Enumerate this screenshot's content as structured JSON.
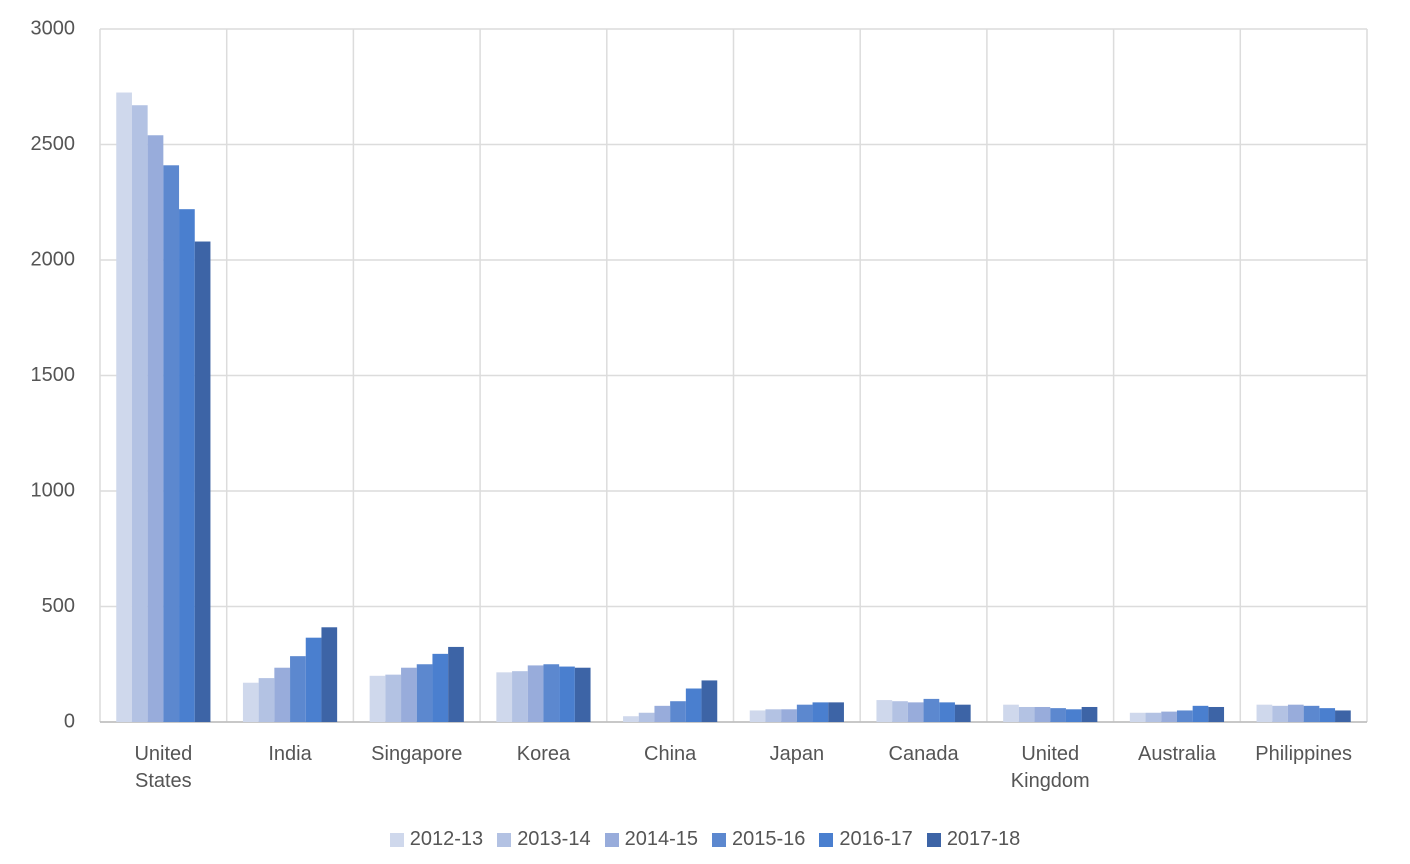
{
  "chart_data": {
    "type": "bar",
    "categories": [
      "United States",
      "India",
      "Singapore",
      "Korea",
      "China",
      "Japan",
      "Canada",
      "United Kingdom",
      "Australia",
      "Philippines"
    ],
    "series": [
      {
        "name": "2012-13",
        "color": "#cfd8ec",
        "values": [
          2725,
          170,
          200,
          215,
          25,
          50,
          95,
          75,
          40,
          75
        ]
      },
      {
        "name": "2013-14",
        "color": "#b3c2e3",
        "values": [
          2670,
          190,
          205,
          220,
          40,
          55,
          90,
          65,
          40,
          70
        ]
      },
      {
        "name": "2014-15",
        "color": "#98acdb",
        "values": [
          2540,
          235,
          235,
          245,
          70,
          55,
          85,
          65,
          45,
          75
        ]
      },
      {
        "name": "2015-16",
        "color": "#5c88cf",
        "values": [
          2410,
          285,
          250,
          250,
          90,
          75,
          100,
          60,
          50,
          70
        ]
      },
      {
        "name": "2016-17",
        "color": "#4a7fcf",
        "values": [
          2220,
          365,
          295,
          240,
          145,
          85,
          85,
          55,
          70,
          60
        ]
      },
      {
        "name": "2017-18",
        "color": "#3d64a6",
        "values": [
          2080,
          410,
          325,
          235,
          180,
          85,
          75,
          65,
          65,
          50
        ]
      }
    ],
    "ylim": [
      0,
      3000
    ],
    "yticks": [
      0,
      500,
      1000,
      1500,
      2000,
      2500,
      3000
    ],
    "grid": true,
    "legend": "bottom"
  }
}
